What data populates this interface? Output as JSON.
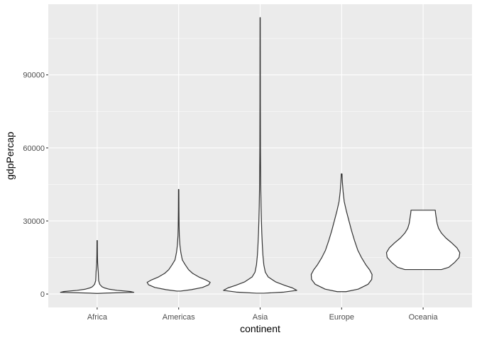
{
  "chart_data": {
    "type": "violin",
    "xlabel": "continent",
    "ylabel": "gdpPercap",
    "categories": [
      "Africa",
      "Americas",
      "Asia",
      "Europe",
      "Oceania"
    ],
    "ylim": [
      -5500,
      119000
    ],
    "yticks": [
      0,
      30000,
      60000,
      90000
    ],
    "ytick_labels": [
      "0",
      "30000",
      "60000",
      "90000"
    ],
    "grid": true,
    "colors": {
      "panel": "#ebebeb",
      "grid_major": "#ffffff",
      "outline": "#333333"
    },
    "violins": [
      {
        "category": "Africa",
        "min": 241,
        "max": 21951,
        "profile": [
          [
            241,
            0.02
          ],
          [
            400,
            0.25
          ],
          [
            700,
            1.0
          ],
          [
            1000,
            0.92
          ],
          [
            1500,
            0.55
          ],
          [
            2000,
            0.32
          ],
          [
            2500,
            0.2
          ],
          [
            3000,
            0.13
          ],
          [
            4000,
            0.07
          ],
          [
            5500,
            0.04
          ],
          [
            7000,
            0.035
          ],
          [
            9000,
            0.03
          ],
          [
            11000,
            0.02
          ],
          [
            13000,
            0.012
          ],
          [
            16000,
            0.008
          ],
          [
            19000,
            0.006
          ],
          [
            21951,
            0.005
          ]
        ]
      },
      {
        "category": "Americas",
        "min": 1202,
        "max": 42952,
        "profile": [
          [
            1202,
            0.05
          ],
          [
            1800,
            0.35
          ],
          [
            2700,
            0.65
          ],
          [
            3800,
            0.82
          ],
          [
            4800,
            0.86
          ],
          [
            5800,
            0.74
          ],
          [
            7000,
            0.55
          ],
          [
            8500,
            0.38
          ],
          [
            10000,
            0.27
          ],
          [
            12000,
            0.18
          ],
          [
            14000,
            0.1
          ],
          [
            17000,
            0.06
          ],
          [
            20000,
            0.035
          ],
          [
            24000,
            0.018
          ],
          [
            28000,
            0.012
          ],
          [
            34000,
            0.008
          ],
          [
            42952,
            0.005
          ]
        ]
      },
      {
        "category": "Asia",
        "min": 331,
        "max": 113523,
        "profile": [
          [
            331,
            0.1
          ],
          [
            800,
            0.65
          ],
          [
            1500,
            1.0
          ],
          [
            2500,
            0.88
          ],
          [
            3500,
            0.68
          ],
          [
            5000,
            0.42
          ],
          [
            7000,
            0.22
          ],
          [
            9000,
            0.14
          ],
          [
            12000,
            0.1
          ],
          [
            16000,
            0.075
          ],
          [
            20000,
            0.06
          ],
          [
            25000,
            0.045
          ],
          [
            30000,
            0.035
          ],
          [
            36000,
            0.025
          ],
          [
            45000,
            0.015
          ],
          [
            60000,
            0.008
          ],
          [
            80000,
            0.005
          ],
          [
            100000,
            0.004
          ],
          [
            113523,
            0.003
          ]
        ]
      },
      {
        "category": "Europe",
        "min": 974,
        "max": 49357,
        "profile": [
          [
            974,
            0.12
          ],
          [
            2000,
            0.45
          ],
          [
            4000,
            0.72
          ],
          [
            6000,
            0.82
          ],
          [
            8000,
            0.83
          ],
          [
            10000,
            0.76
          ],
          [
            12000,
            0.66
          ],
          [
            15000,
            0.54
          ],
          [
            18000,
            0.44
          ],
          [
            22000,
            0.35
          ],
          [
            26000,
            0.27
          ],
          [
            30000,
            0.2
          ],
          [
            34000,
            0.13
          ],
          [
            38000,
            0.07
          ],
          [
            42000,
            0.04
          ],
          [
            46000,
            0.02
          ],
          [
            49357,
            0.01
          ]
        ]
      },
      {
        "category": "Oceania",
        "min": 10040,
        "max": 34435,
        "profile": [
          [
            10040,
            0.5
          ],
          [
            11000,
            0.7
          ],
          [
            13000,
            0.86
          ],
          [
            15000,
            0.98
          ],
          [
            17000,
            1.0
          ],
          [
            19000,
            0.92
          ],
          [
            21000,
            0.78
          ],
          [
            23000,
            0.62
          ],
          [
            25000,
            0.5
          ],
          [
            27000,
            0.42
          ],
          [
            29000,
            0.38
          ],
          [
            31000,
            0.36
          ],
          [
            33000,
            0.34
          ],
          [
            34435,
            0.33
          ]
        ]
      }
    ]
  }
}
